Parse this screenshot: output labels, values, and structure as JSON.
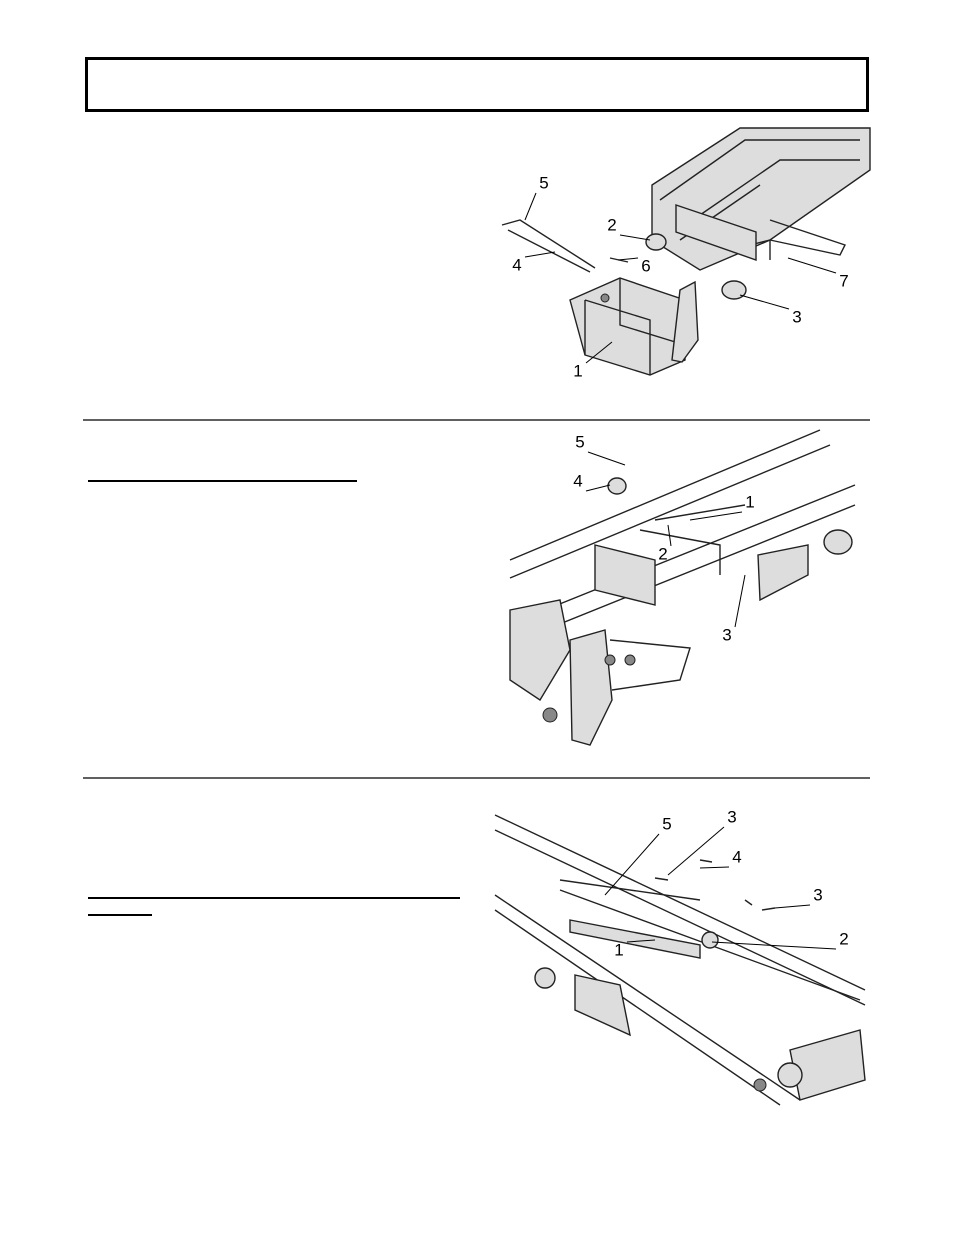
{
  "figures": [
    {
      "callouts": [
        "5",
        "2",
        "4",
        "6",
        "7",
        "3",
        "1"
      ]
    },
    {
      "callouts": [
        "5",
        "4",
        "1",
        "2",
        "3"
      ]
    },
    {
      "callouts": [
        "5",
        "3",
        "4",
        "3",
        "2",
        "1"
      ]
    }
  ]
}
